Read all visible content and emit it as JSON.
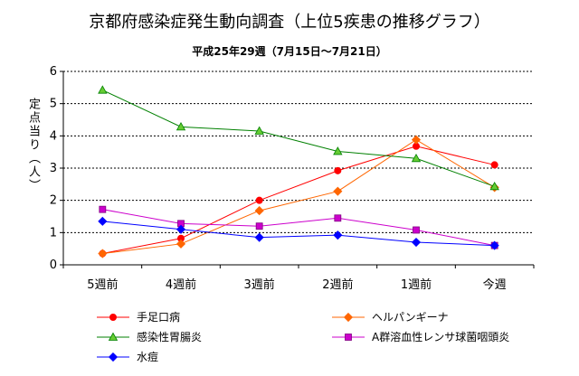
{
  "chart_data": {
    "type": "line",
    "title": "京都府感染症発生動向調査（上位5疾患の推移グラフ）",
    "subtitle": "平成25年29週（7月15日～7月21日）",
    "ylabel": "定点当り（人）",
    "xlabel": "",
    "categories": [
      "5週前",
      "4週前",
      "3週前",
      "2週前",
      "1週前",
      "今週"
    ],
    "ylim": [
      0,
      6
    ],
    "yticks": [
      0,
      1,
      2,
      3,
      4,
      5,
      6
    ],
    "grid": true,
    "legend_position": "bottom",
    "series": [
      {
        "name": "手足口病",
        "color": "#ff0000",
        "marker": "circle",
        "values": [
          0.35,
          0.82,
          2.0,
          2.92,
          3.68,
          3.1
        ]
      },
      {
        "name": "ヘルパンギーナ",
        "color": "#ff6600",
        "marker": "diamond",
        "values": [
          0.35,
          0.65,
          1.68,
          2.28,
          3.88,
          2.4
        ]
      },
      {
        "name": "感染性胃腸炎",
        "color": "#008000",
        "marker": "triangle",
        "values": [
          5.42,
          4.28,
          4.15,
          3.52,
          3.3,
          2.43
        ]
      },
      {
        "name": "A群溶血性レンサ球菌咽頭炎",
        "color": "#cc00cc",
        "marker": "square",
        "values": [
          1.72,
          1.28,
          1.2,
          1.45,
          1.08,
          0.6
        ]
      },
      {
        "name": "水痘",
        "color": "#0000ff",
        "marker": "diamond",
        "values": [
          1.35,
          1.1,
          0.85,
          0.92,
          0.7,
          0.6
        ]
      }
    ]
  }
}
